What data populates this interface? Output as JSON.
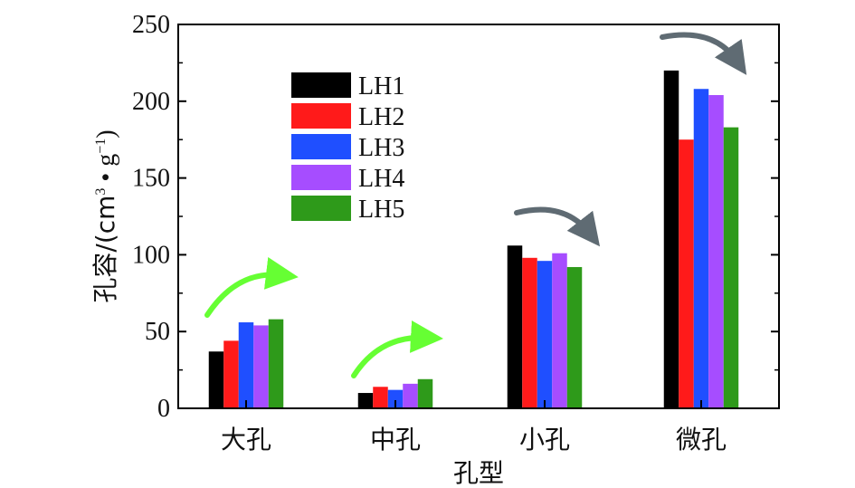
{
  "chart_data": {
    "type": "bar",
    "categories": [
      "大孔",
      "中孔",
      "小孔",
      "微孔"
    ],
    "series": [
      {
        "name": "LH1",
        "color": "#000000",
        "values": [
          37,
          10,
          106,
          220
        ]
      },
      {
        "name": "LH2",
        "color": "#ff1a1a",
        "values": [
          44,
          14,
          98,
          175
        ]
      },
      {
        "name": "LH3",
        "color": "#1f4fff",
        "values": [
          56,
          12,
          96,
          208
        ]
      },
      {
        "name": "LH4",
        "color": "#a64dff",
        "values": [
          54,
          16,
          101,
          204
        ]
      },
      {
        "name": "LH5",
        "color": "#2e9a1a",
        "values": [
          58,
          19,
          92,
          183
        ]
      }
    ],
    "xlabel": "孔型",
    "ylabel_main": "孔容/(cm",
    "ylabel_sup1": "3",
    "ylabel_mid": " • g",
    "ylabel_sup2": "−1",
    "ylabel_end": ")",
    "ylim": [
      0,
      250
    ],
    "yticks": [
      0,
      50,
      100,
      150,
      200,
      250
    ],
    "legend_position": "top-left",
    "grid": false,
    "trend_arrows": [
      {
        "category": "大孔",
        "direction": "up",
        "color": "#66ff33"
      },
      {
        "category": "中孔",
        "direction": "up",
        "color": "#66ff33"
      },
      {
        "category": "小孔",
        "direction": "down",
        "color": "#5f6b73"
      },
      {
        "category": "微孔",
        "direction": "down",
        "color": "#5f6b73"
      }
    ]
  }
}
